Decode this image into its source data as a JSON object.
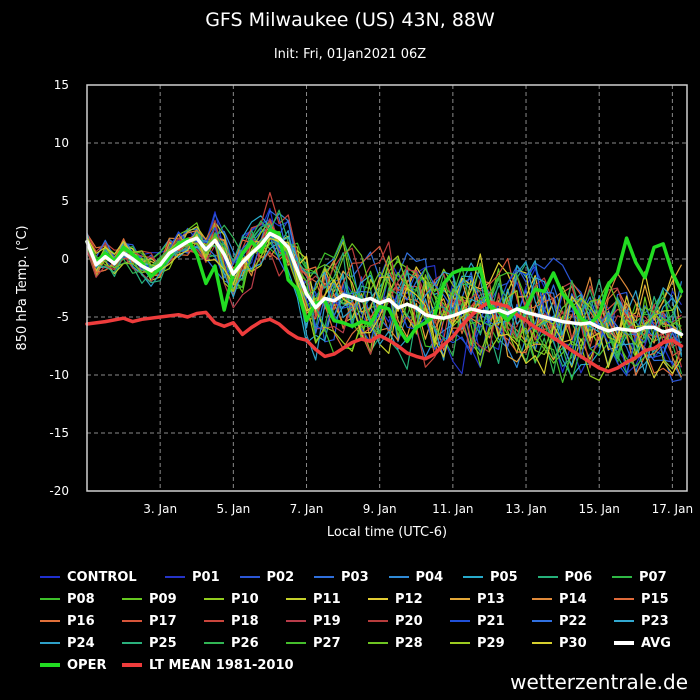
{
  "chart_data": {
    "type": "line",
    "title": "GFS Milwaukee (US) 43N, 88W",
    "subtitle": "Init: Fri, 01Jan2021 06Z",
    "xlabel": "Local time (UTC-6)",
    "ylabel": "850 hPa Temp. (°C)",
    "ylim": [
      -20,
      15
    ],
    "xlim": [
      0,
      16.4
    ],
    "yticks": [
      -20,
      -15,
      -10,
      -5,
      0,
      5,
      10,
      15
    ],
    "xticks": [
      {
        "x": 2,
        "label": "3. Jan"
      },
      {
        "x": 4,
        "label": "5. Jan"
      },
      {
        "x": 6,
        "label": "7. Jan"
      },
      {
        "x": 8,
        "label": "9. Jan"
      },
      {
        "x": 10,
        "label": "11. Jan"
      },
      {
        "x": 12,
        "label": "13. Jan"
      },
      {
        "x": 14,
        "label": "15. Jan"
      },
      {
        "x": 16,
        "label": "17. Jan"
      }
    ],
    "grid": true,
    "legend_position": "bottom",
    "key_series": [
      {
        "name": "AVG",
        "color": "#ffffff",
        "width": 3.5,
        "points": [
          [
            0,
            1.5
          ],
          [
            0.25,
            -0.5
          ],
          [
            0.5,
            0.2
          ],
          [
            0.75,
            -0.4
          ],
          [
            1,
            0.5
          ],
          [
            1.25,
            0
          ],
          [
            1.5,
            -0.6
          ],
          [
            1.75,
            -1
          ],
          [
            2,
            -0.5
          ],
          [
            2.25,
            0.5
          ],
          [
            2.5,
            1
          ],
          [
            2.75,
            1.5
          ],
          [
            3,
            1.8
          ],
          [
            3.25,
            0.8
          ],
          [
            3.5,
            1.6
          ],
          [
            3.75,
            0.4
          ],
          [
            4,
            -1.3
          ],
          [
            4.25,
            -0.3
          ],
          [
            4.5,
            0.5
          ],
          [
            4.75,
            1.2
          ],
          [
            5,
            2.2
          ],
          [
            5.25,
            1.8
          ],
          [
            5.5,
            1
          ],
          [
            5.75,
            -1
          ],
          [
            6,
            -3
          ],
          [
            6.25,
            -4.2
          ],
          [
            6.5,
            -3.4
          ],
          [
            6.75,
            -3.6
          ],
          [
            7,
            -3.1
          ],
          [
            7.25,
            -3.3
          ],
          [
            7.5,
            -3.6
          ],
          [
            7.75,
            -3.4
          ],
          [
            8,
            -3.8
          ],
          [
            8.25,
            -3.5
          ],
          [
            8.5,
            -4.2
          ],
          [
            8.75,
            -3.9
          ],
          [
            9,
            -4.2
          ],
          [
            9.25,
            -4.8
          ],
          [
            9.5,
            -5
          ],
          [
            9.75,
            -5.1
          ],
          [
            10,
            -4.9
          ],
          [
            10.25,
            -4.6
          ],
          [
            10.5,
            -4.3
          ],
          [
            10.75,
            -4.5
          ],
          [
            11,
            -4.6
          ],
          [
            11.25,
            -4.4
          ],
          [
            11.5,
            -4.7
          ],
          [
            11.75,
            -4.3
          ],
          [
            12,
            -4.6
          ],
          [
            12.25,
            -4.8
          ],
          [
            12.5,
            -5
          ],
          [
            12.75,
            -5.2
          ],
          [
            13,
            -5.4
          ],
          [
            13.25,
            -5.5
          ],
          [
            13.5,
            -5.6
          ],
          [
            13.75,
            -5.5
          ],
          [
            14,
            -5.9
          ],
          [
            14.25,
            -6.2
          ],
          [
            14.5,
            -6
          ],
          [
            14.75,
            -6.1
          ],
          [
            15,
            -6.2
          ],
          [
            15.25,
            -5.9
          ],
          [
            15.5,
            -5.9
          ],
          [
            15.75,
            -6.3
          ],
          [
            16,
            -6.1
          ],
          [
            16.25,
            -6.5
          ]
        ]
      },
      {
        "name": "OPER",
        "color": "#22dd22",
        "width": 3.5,
        "points": [
          [
            0,
            1.5
          ],
          [
            0.25,
            -0.3
          ],
          [
            0.5,
            0.5
          ],
          [
            0.75,
            -0.2
          ],
          [
            1,
            1
          ],
          [
            1.25,
            0.4
          ],
          [
            1.5,
            -0.3
          ],
          [
            1.75,
            -1.5
          ],
          [
            2,
            -0.8
          ],
          [
            2.25,
            0.2
          ],
          [
            2.5,
            1.3
          ],
          [
            2.75,
            1.7
          ],
          [
            3,
            0.4
          ],
          [
            3.25,
            -2.1
          ],
          [
            3.5,
            -0.6
          ],
          [
            3.75,
            -4.4
          ],
          [
            4,
            -1.2
          ],
          [
            4.25,
            0.5
          ],
          [
            4.5,
            1.5
          ],
          [
            4.75,
            0.6
          ],
          [
            5,
            2.5
          ],
          [
            5.25,
            2.2
          ],
          [
            5.5,
            -1.8
          ],
          [
            5.75,
            -2.6
          ],
          [
            6,
            -5.3
          ],
          [
            6.25,
            -3.8
          ],
          [
            6.5,
            -3.6
          ],
          [
            6.75,
            -5.3
          ],
          [
            7,
            -5.5
          ],
          [
            7.25,
            -5.8
          ],
          [
            7.5,
            -5.4
          ],
          [
            7.75,
            -5.6
          ],
          [
            8,
            -4.1
          ],
          [
            8.25,
            -4.3
          ],
          [
            8.5,
            -5.9
          ],
          [
            8.75,
            -7.1
          ],
          [
            9,
            -5.9
          ],
          [
            9.25,
            -5.5
          ],
          [
            9.5,
            -4.9
          ],
          [
            9.75,
            -2.1
          ],
          [
            10,
            -1.2
          ],
          [
            10.25,
            -0.9
          ],
          [
            10.5,
            -0.9
          ],
          [
            10.75,
            -0.8
          ],
          [
            11,
            -4.1
          ],
          [
            11.25,
            -4.5
          ],
          [
            11.5,
            -5.3
          ],
          [
            11.75,
            -4.3
          ],
          [
            12,
            -4.2
          ],
          [
            12.25,
            -2.6
          ],
          [
            12.5,
            -2.8
          ],
          [
            12.75,
            -1.2
          ],
          [
            13,
            -3
          ],
          [
            13.25,
            -3.9
          ],
          [
            13.5,
            -5.1
          ],
          [
            13.75,
            -5.6
          ],
          [
            14,
            -4.8
          ],
          [
            14.25,
            -2.2
          ],
          [
            14.5,
            -1.2
          ],
          [
            14.75,
            1.8
          ],
          [
            15,
            -0.3
          ],
          [
            15.25,
            -1.6
          ],
          [
            15.5,
            1
          ],
          [
            15.75,
            1.3
          ],
          [
            16,
            -1.2
          ],
          [
            16.25,
            -2.8
          ]
        ]
      },
      {
        "name": "LT MEAN 1981-2010",
        "color": "#ee3c3c",
        "width": 3.5,
        "points": [
          [
            0,
            -5.6
          ],
          [
            0.5,
            -5.4
          ],
          [
            1,
            -5.1
          ],
          [
            1.25,
            -5.4
          ],
          [
            1.5,
            -5.2
          ],
          [
            2,
            -5
          ],
          [
            2.5,
            -4.8
          ],
          [
            2.75,
            -5
          ],
          [
            3,
            -4.7
          ],
          [
            3.25,
            -4.6
          ],
          [
            3.5,
            -5.5
          ],
          [
            3.75,
            -5.8
          ],
          [
            4,
            -5.5
          ],
          [
            4.25,
            -6.5
          ],
          [
            4.5,
            -5.9
          ],
          [
            4.75,
            -5.4
          ],
          [
            5,
            -5.2
          ],
          [
            5.25,
            -5.6
          ],
          [
            5.5,
            -6.3
          ],
          [
            5.75,
            -6.8
          ],
          [
            6,
            -7
          ],
          [
            6.25,
            -7.8
          ],
          [
            6.5,
            -8.4
          ],
          [
            6.75,
            -8.2
          ],
          [
            7,
            -7.7
          ],
          [
            7.25,
            -7.2
          ],
          [
            7.5,
            -6.9
          ],
          [
            7.75,
            -7.1
          ],
          [
            8,
            -6.6
          ],
          [
            8.25,
            -7
          ],
          [
            8.5,
            -7.5
          ],
          [
            8.75,
            -8.1
          ],
          [
            9,
            -8.4
          ],
          [
            9.25,
            -8.6
          ],
          [
            9.5,
            -8.2
          ],
          [
            9.75,
            -7.4
          ],
          [
            10,
            -6.7
          ],
          [
            10.25,
            -5.7
          ],
          [
            10.5,
            -4.9
          ],
          [
            10.75,
            -4.2
          ],
          [
            11,
            -3.7
          ],
          [
            11.25,
            -3.9
          ],
          [
            11.5,
            -4.1
          ],
          [
            11.75,
            -4.8
          ],
          [
            12,
            -5.3
          ],
          [
            12.25,
            -5.9
          ],
          [
            12.5,
            -6.3
          ],
          [
            12.75,
            -6.8
          ],
          [
            13,
            -7.3
          ],
          [
            13.25,
            -7.9
          ],
          [
            13.5,
            -8.4
          ],
          [
            13.75,
            -8.9
          ],
          [
            14,
            -9.4
          ],
          [
            14.25,
            -9.7
          ],
          [
            14.5,
            -9.4
          ],
          [
            14.75,
            -8.9
          ],
          [
            15,
            -8.5
          ],
          [
            15.25,
            -7.9
          ],
          [
            15.5,
            -7.7
          ],
          [
            15.75,
            -7.2
          ],
          [
            16,
            -7
          ],
          [
            16.25,
            -7.5
          ]
        ]
      }
    ],
    "legend": [
      {
        "name": "CONTROL",
        "color": "#1f2fcf"
      },
      {
        "name": "P01",
        "color": "#2534c8"
      },
      {
        "name": "P02",
        "color": "#2b56d6"
      },
      {
        "name": "P03",
        "color": "#2f6fdc"
      },
      {
        "name": "P04",
        "color": "#2f8ad6"
      },
      {
        "name": "P05",
        "color": "#27aacb"
      },
      {
        "name": "P06",
        "color": "#25b07a"
      },
      {
        "name": "P07",
        "color": "#2fb845"
      },
      {
        "name": "P08",
        "color": "#3dc02a"
      },
      {
        "name": "P09",
        "color": "#66c820"
      },
      {
        "name": "P10",
        "color": "#92cc1e"
      },
      {
        "name": "P11",
        "color": "#c4d02a"
      },
      {
        "name": "P12",
        "color": "#e2cc33"
      },
      {
        "name": "P13",
        "color": "#e4a838"
      },
      {
        "name": "P14",
        "color": "#e08a3a"
      },
      {
        "name": "P15",
        "color": "#df6a3a"
      },
      {
        "name": "P16",
        "color": "#e0703a"
      },
      {
        "name": "P17",
        "color": "#d6553a"
      },
      {
        "name": "P18",
        "color": "#c9453c"
      },
      {
        "name": "P19",
        "color": "#b83c4a"
      },
      {
        "name": "P20",
        "color": "#b73c3c"
      },
      {
        "name": "P21",
        "color": "#2050d8"
      },
      {
        "name": "P22",
        "color": "#3070e0"
      },
      {
        "name": "P23",
        "color": "#32a8d0"
      },
      {
        "name": "P24",
        "color": "#2ea0c8"
      },
      {
        "name": "P25",
        "color": "#2ab07c"
      },
      {
        "name": "P26",
        "color": "#31b554"
      },
      {
        "name": "P27",
        "color": "#45bd2c"
      },
      {
        "name": "P28",
        "color": "#6ec422"
      },
      {
        "name": "P29",
        "color": "#9ccb20"
      },
      {
        "name": "P30",
        "color": "#d6cf2e"
      },
      {
        "name": "AVG",
        "color": "#ffffff",
        "thick": true
      },
      {
        "name": "OPER",
        "color": "#22dd22",
        "thick": true
      },
      {
        "name": "LT MEAN 1981-2010",
        "color": "#ee3c3c",
        "thick": true
      }
    ]
  },
  "footer": "wetterzentrale.de"
}
